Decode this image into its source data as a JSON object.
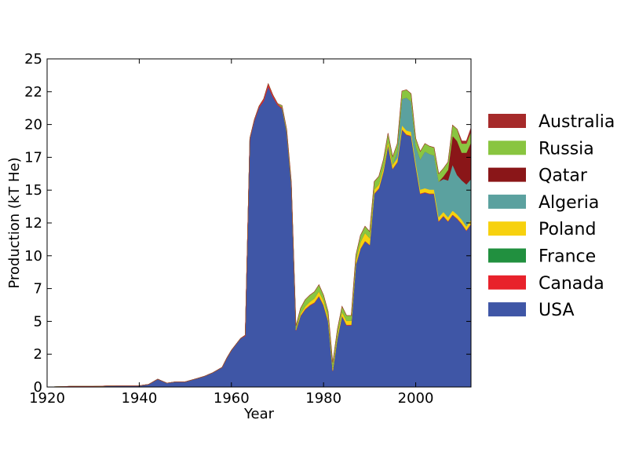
{
  "chart_data": {
    "type": "area",
    "stacked": true,
    "xlabel": "Year",
    "ylabel": "Production (kT He)",
    "xlim": [
      1920,
      2012
    ],
    "ylim": [
      0,
      25
    ],
    "x_ticks": [
      1920,
      1940,
      1960,
      1980,
      2000
    ],
    "x_tick_labels": [
      "1920",
      "1940",
      "1960",
      "1980",
      "2000"
    ],
    "y_ticks": [
      0,
      2.5,
      5,
      7.5,
      10,
      12.5,
      15,
      17.5,
      20,
      22.5,
      25
    ],
    "y_tick_labels": [
      "0",
      "2",
      "5",
      "7",
      "10",
      "12",
      "15",
      "17",
      "20",
      "22",
      "25"
    ],
    "legend_position": "right",
    "x": [
      1920,
      1925,
      1930,
      1935,
      1940,
      1942,
      1944,
      1946,
      1948,
      1950,
      1952,
      1954,
      1956,
      1958,
      1959,
      1960,
      1962,
      1963,
      1964,
      1965,
      1966,
      1967,
      1968,
      1969,
      1970,
      1971,
      1972,
      1973,
      1974,
      1975,
      1976,
      1977,
      1978,
      1979,
      1980,
      1981,
      1982,
      1983,
      1984,
      1985,
      1986,
      1987,
      1988,
      1989,
      1990,
      1991,
      1992,
      1993,
      1994,
      1995,
      1996,
      1997,
      1998,
      1999,
      2000,
      2001,
      2002,
      2003,
      2004,
      2005,
      2006,
      2007,
      2008,
      2009,
      2010,
      2011,
      2012
    ],
    "series": [
      {
        "name": "USA",
        "color": "#3f56a6",
        "values": [
          0,
          0.05,
          0.05,
          0.1,
          0.1,
          0.2,
          0.6,
          0.3,
          0.4,
          0.4,
          0.6,
          0.8,
          1.1,
          1.5,
          2.2,
          2.8,
          3.7,
          3.9,
          18.9,
          20.3,
          21.3,
          21.8,
          22.9,
          22.1,
          21.5,
          21.2,
          19.4,
          15.4,
          4.3,
          5.4,
          5.9,
          6.2,
          6.4,
          6.9,
          6.2,
          5.0,
          1.2,
          3.7,
          5.4,
          4.7,
          4.7,
          9.3,
          10.5,
          11.1,
          10.8,
          14.7,
          15.1,
          16.4,
          18.4,
          16.6,
          17.1,
          19.6,
          19.2,
          19.1,
          16.8,
          14.7,
          14.8,
          14.7,
          14.7,
          12.6,
          13.0,
          12.6,
          13.1,
          12.8,
          12.4,
          11.9,
          12.4
        ]
      },
      {
        "name": "Canada",
        "color": "#e8222b",
        "values": [
          0,
          0,
          0,
          0,
          0,
          0,
          0,
          0,
          0,
          0,
          0,
          0,
          0,
          0,
          0,
          0,
          0,
          0.05,
          0.05,
          0.08,
          0.1,
          0.15,
          0.2,
          0.15,
          0.1,
          0.1,
          0.05,
          0.05,
          0.05,
          0.05,
          0.05,
          0.05,
          0.05,
          0.05,
          0.05,
          0.05,
          0.05,
          0.05,
          0.05,
          0.05,
          0.05,
          0.05,
          0.05,
          0.05,
          0.05,
          0.05,
          0.05,
          0.05,
          0.05,
          0.05,
          0.05,
          0.05,
          0.05,
          0.05,
          0.05,
          0.05,
          0.05,
          0.05,
          0.05,
          0.05,
          0.05,
          0.05,
          0.05,
          0.05,
          0.05,
          0.05,
          0.05
        ]
      },
      {
        "name": "France",
        "color": "#21903f",
        "values": [
          0,
          0,
          0,
          0,
          0,
          0,
          0,
          0,
          0,
          0,
          0,
          0,
          0,
          0,
          0,
          0,
          0,
          0,
          0,
          0,
          0,
          0,
          0,
          0,
          0,
          0,
          0,
          0,
          0,
          0,
          0,
          0,
          0,
          0,
          0,
          0,
          0,
          0,
          0,
          0,
          0,
          0,
          0,
          0,
          0,
          0,
          0,
          0,
          0,
          0,
          0,
          0,
          0,
          0,
          0,
          0,
          0,
          0,
          0,
          0,
          0,
          0,
          0,
          0,
          0,
          0,
          0
        ]
      },
      {
        "name": "Poland",
        "color": "#f7d10e",
        "values": [
          0,
          0,
          0,
          0,
          0,
          0,
          0,
          0,
          0,
          0,
          0,
          0,
          0,
          0,
          0,
          0,
          0,
          0,
          0,
          0,
          0,
          0,
          0,
          0,
          0,
          0,
          0,
          0,
          0.1,
          0.15,
          0.2,
          0.25,
          0.3,
          0.35,
          0.35,
          0.3,
          0.2,
          0.25,
          0.3,
          0.3,
          0.3,
          0.3,
          0.5,
          0.6,
          0.5,
          0.3,
          0.3,
          0.3,
          0.3,
          0.3,
          0.3,
          0.3,
          0.3,
          0.3,
          0.3,
          0.3,
          0.3,
          0.3,
          0.3,
          0.3,
          0.3,
          0.3,
          0.3,
          0.3,
          0.3,
          0.3,
          0.3
        ]
      },
      {
        "name": "Algeria",
        "color": "#5ba19f",
        "values": [
          0,
          0,
          0,
          0,
          0,
          0,
          0,
          0,
          0,
          0,
          0,
          0,
          0,
          0,
          0,
          0,
          0,
          0,
          0,
          0,
          0,
          0,
          0,
          0,
          0,
          0,
          0,
          0,
          0,
          0,
          0,
          0,
          0,
          0,
          0,
          0,
          0,
          0,
          0,
          0,
          0,
          0,
          0,
          0,
          0,
          0,
          0,
          0,
          0,
          0,
          0.5,
          2.0,
          2.5,
          2.3,
          1.2,
          2.3,
          2.8,
          2.7,
          2.6,
          2.7,
          2.5,
          2.8,
          3.5,
          3.0,
          3.0,
          3.2,
          3.1
        ]
      },
      {
        "name": "Qatar",
        "color": "#8a1618",
        "values": [
          0,
          0,
          0,
          0,
          0,
          0,
          0,
          0,
          0,
          0,
          0,
          0,
          0,
          0,
          0,
          0,
          0,
          0,
          0,
          0,
          0,
          0,
          0,
          0,
          0,
          0,
          0,
          0,
          0,
          0,
          0,
          0,
          0,
          0,
          0,
          0,
          0,
          0,
          0,
          0,
          0,
          0,
          0,
          0,
          0,
          0,
          0,
          0,
          0,
          0,
          0,
          0,
          0,
          0,
          0,
          0,
          0,
          0,
          0,
          0,
          0.2,
          0.8,
          2.2,
          2.6,
          2.1,
          2.4,
          2.8
        ]
      },
      {
        "name": "Russia",
        "color": "#89c540",
        "values": [
          0,
          0,
          0,
          0,
          0,
          0,
          0,
          0,
          0,
          0,
          0,
          0,
          0,
          0,
          0,
          0,
          0,
          0,
          0,
          0,
          0,
          0,
          0,
          0,
          0,
          0.15,
          0.2,
          0.2,
          0.2,
          0.4,
          0.5,
          0.5,
          0.5,
          0.5,
          0.4,
          0.4,
          0.4,
          0.4,
          0.4,
          0.4,
          0.4,
          0.4,
          0.5,
          0.5,
          0.5,
          0.6,
          0.6,
          0.6,
          0.6,
          0.6,
          0.6,
          0.6,
          0.6,
          0.6,
          0.6,
          0.6,
          0.6,
          0.6,
          0.6,
          0.6,
          0.6,
          0.6,
          0.8,
          0.9,
          0.7,
          0.7,
          0.8
        ]
      },
      {
        "name": "Australia",
        "color": "#a62a2a",
        "values": [
          0,
          0,
          0,
          0,
          0,
          0,
          0,
          0,
          0,
          0,
          0,
          0,
          0,
          0,
          0,
          0,
          0,
          0,
          0,
          0,
          0,
          0,
          0,
          0,
          0,
          0,
          0,
          0,
          0,
          0,
          0,
          0,
          0,
          0,
          0,
          0,
          0,
          0,
          0,
          0,
          0,
          0,
          0,
          0,
          0,
          0,
          0,
          0,
          0,
          0,
          0,
          0,
          0,
          0,
          0,
          0,
          0,
          0,
          0,
          0,
          0,
          0,
          0,
          0,
          0.2,
          0.2,
          0.3
        ]
      }
    ],
    "legend_order": [
      "Australia",
      "Russia",
      "Qatar",
      "Algeria",
      "Poland",
      "France",
      "Canada",
      "USA"
    ]
  }
}
